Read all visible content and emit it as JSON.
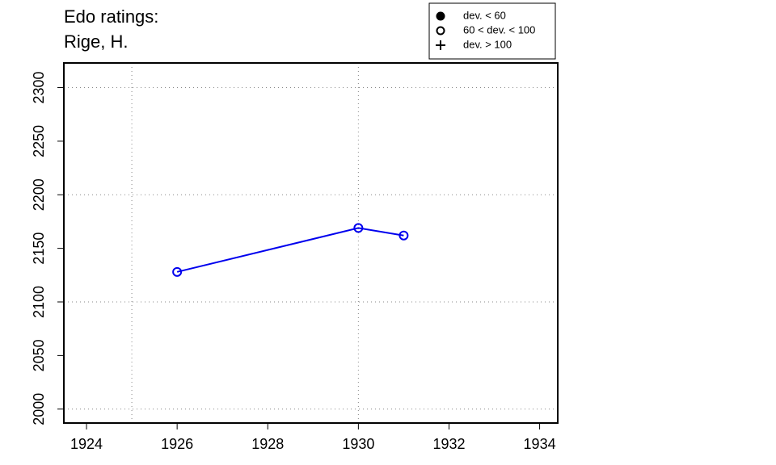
{
  "chart_data": {
    "type": "line",
    "title": [
      "Edo ratings:",
      "Rige, H."
    ],
    "x": [
      1926,
      1930,
      1931
    ],
    "series": [
      {
        "color": "#0000ee",
        "marker": "open",
        "values": [
          2128,
          2169,
          2162
        ]
      }
    ],
    "xlim": [
      1923.5,
      1934.4
    ],
    "xticks": [
      1924,
      1926,
      1928,
      1930,
      1932,
      1934
    ],
    "ylim": [
      1987,
      2323
    ],
    "yticks": [
      2000,
      2050,
      2100,
      2150,
      2200,
      2250,
      2300
    ],
    "xgrid": [
      1925,
      1930
    ],
    "ygrid": [
      2000,
      2100,
      2200,
      2300
    ],
    "legend": [
      {
        "label": "dev. < 60",
        "symbol": "filled"
      },
      {
        "label": "60 < dev. < 100",
        "symbol": "open"
      },
      {
        "label": "dev. > 100",
        "symbol": "plus"
      }
    ]
  }
}
